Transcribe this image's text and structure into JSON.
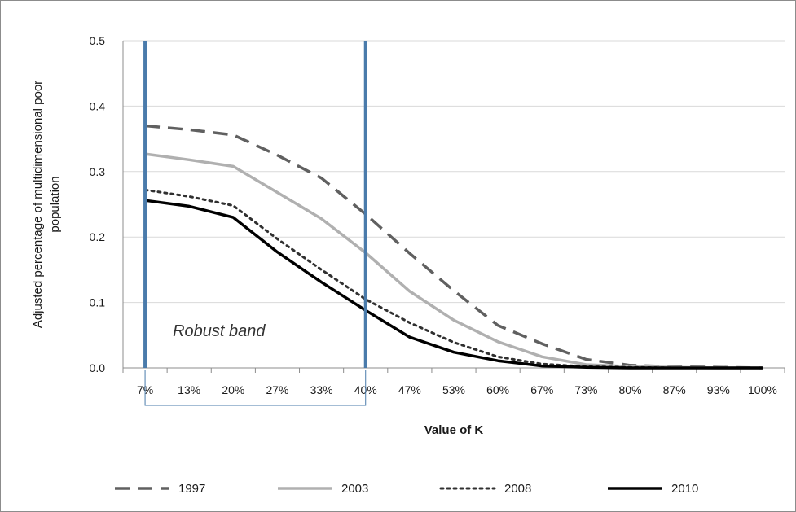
{
  "chart_data": {
    "type": "line",
    "title": "",
    "xlabel": "Value of K",
    "ylabel_lines": [
      "Adjusted percentage of multidimensional poor",
      "population"
    ],
    "categories": [
      "7%",
      "13%",
      "20%",
      "27%",
      "33%",
      "40%",
      "47%",
      "53%",
      "60%",
      "67%",
      "73%",
      "80%",
      "87%",
      "93%",
      "100%"
    ],
    "yticks": [
      "0.0",
      "0.1",
      "0.2",
      "0.3",
      "0.4",
      "0.5"
    ],
    "ylim": [
      0,
      0.5
    ],
    "grid": "horizontal",
    "legend_position": "bottom",
    "series": [
      {
        "name": "1997",
        "style": "dashed",
        "color": "#606060",
        "values": [
          0.37,
          0.364,
          0.356,
          0.325,
          0.29,
          0.235,
          0.175,
          0.118,
          0.065,
          0.037,
          0.013,
          0.004,
          0.002,
          0.001,
          0.0
        ]
      },
      {
        "name": "2003",
        "style": "solid",
        "color": "#b0b0b0",
        "values": [
          0.327,
          0.318,
          0.308,
          0.268,
          0.228,
          0.176,
          0.117,
          0.073,
          0.04,
          0.017,
          0.005,
          0.002,
          0.001,
          0.0,
          0.0
        ]
      },
      {
        "name": "2008",
        "style": "dotted",
        "color": "#303030",
        "values": [
          0.272,
          0.262,
          0.248,
          0.197,
          0.15,
          0.105,
          0.069,
          0.039,
          0.017,
          0.006,
          0.002,
          0.001,
          0.0,
          0.0,
          0.0
        ]
      },
      {
        "name": "2010",
        "style": "solid",
        "color": "#000000",
        "values": [
          0.256,
          0.247,
          0.23,
          0.177,
          0.131,
          0.088,
          0.047,
          0.024,
          0.011,
          0.003,
          0.001,
          0.0,
          0.0,
          0.0,
          0.0
        ]
      }
    ],
    "annotations": {
      "band_label": "Robust band",
      "band_from": "7%",
      "band_to": "40%",
      "band_color": "#4a7bab"
    }
  }
}
